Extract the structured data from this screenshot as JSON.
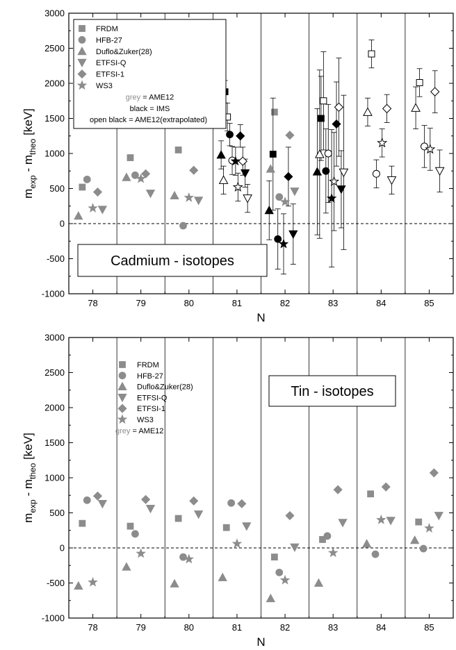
{
  "colors": {
    "grey": "#8c8c8c",
    "black": "#000000",
    "open": "#ffffff"
  },
  "chart_data": [
    {
      "type": "scatter",
      "panel": "cadmium",
      "title": "",
      "annotation": "Cadmium - isotopes",
      "xlabel": "N",
      "ylabel": {
        "base": "m",
        "sub1": "exp",
        "mid": " - m",
        "sub2": "theo",
        "tail": " [keV]"
      },
      "xlim": [
        77.5,
        85.5
      ],
      "ylim": [
        -1000,
        3000
      ],
      "xticks": [
        "78",
        "79",
        "80",
        "81",
        "82",
        "83",
        "84",
        "85"
      ],
      "yticks": [
        "-1000",
        "-500",
        "0",
        "500",
        "1000",
        "1500",
        "2000",
        "2500",
        "3000"
      ],
      "legend_position": "top-left",
      "legend": [
        "FRDM",
        "HFB-27",
        "Duflo&Zuker(28)",
        "ETFSI-Q",
        "ETFSI-1",
        "WS3"
      ],
      "legend_notes": [
        {
          "key": "grey",
          "text": " = AME12"
        },
        {
          "key": "",
          "text": "black = IMS"
        },
        {
          "key": "",
          "text": "open black  = AME12(extrapolated)"
        }
      ],
      "series": [
        {
          "name": "FRDM",
          "marker": "square",
          "points": [
            {
              "x": 78,
              "y": 520,
              "style": "grey"
            },
            {
              "x": 79,
              "y": 940,
              "style": "grey"
            },
            {
              "x": 80,
              "y": 1050,
              "style": "grey"
            },
            {
              "x": 81,
              "y": 1880,
              "err": 160,
              "style": "black"
            },
            {
              "x": 81,
              "y": 1520,
              "err": 200,
              "style": "open"
            },
            {
              "x": 82,
              "y": 1590,
              "style": "grey"
            },
            {
              "x": 82,
              "y": 990,
              "err": 800,
              "style": "black"
            },
            {
              "x": 83,
              "y": 1500,
              "err": 600,
              "style": "black"
            },
            {
              "x": 83,
              "y": 1750,
              "err": 700,
              "style": "open"
            },
            {
              "x": 84,
              "y": 2420,
              "err": 200,
              "style": "open"
            },
            {
              "x": 85,
              "y": 2010,
              "err": 200,
              "style": "open"
            }
          ]
        },
        {
          "name": "HFB-27",
          "marker": "circle",
          "points": [
            {
              "x": 78,
              "y": 630,
              "style": "grey"
            },
            {
              "x": 79,
              "y": 690,
              "style": "grey"
            },
            {
              "x": 80,
              "y": -30,
              "style": "grey"
            },
            {
              "x": 81,
              "y": 1270,
              "err": 160,
              "style": "black"
            },
            {
              "x": 81,
              "y": 900,
              "err": 200,
              "style": "open"
            },
            {
              "x": 82,
              "y": 380,
              "style": "grey"
            },
            {
              "x": 82,
              "y": -220,
              "err": 430,
              "style": "black"
            },
            {
              "x": 83,
              "y": 750,
              "err": 600,
              "style": "black"
            },
            {
              "x": 83,
              "y": 1000,
              "err": 700,
              "style": "open"
            },
            {
              "x": 84,
              "y": 710,
              "err": 200,
              "style": "open"
            },
            {
              "x": 85,
              "y": 1100,
              "err": 300,
              "style": "open"
            }
          ]
        },
        {
          "name": "Duflo&Zuker(28)",
          "marker": "triangle-up",
          "points": [
            {
              "x": 78,
              "y": 110,
              "style": "grey"
            },
            {
              "x": 79,
              "y": 660,
              "style": "grey"
            },
            {
              "x": 80,
              "y": 400,
              "style": "grey"
            },
            {
              "x": 81,
              "y": 980,
              "err": 200,
              "style": "black"
            },
            {
              "x": 81,
              "y": 620,
              "err": 200,
              "style": "open"
            },
            {
              "x": 82,
              "y": 780,
              "style": "grey"
            },
            {
              "x": 82,
              "y": 190,
              "err": 420,
              "style": "black"
            },
            {
              "x": 83,
              "y": 740,
              "err": 900,
              "style": "black"
            },
            {
              "x": 83,
              "y": 990,
              "err": 1200,
              "style": "open"
            },
            {
              "x": 84,
              "y": 1590,
              "err": 200,
              "style": "open"
            },
            {
              "x": 85,
              "y": 1650,
              "err": 300,
              "style": "open"
            }
          ]
        },
        {
          "name": "ETFSI-Q",
          "marker": "triangle-down",
          "points": [
            {
              "x": 78,
              "y": 200,
              "style": "grey"
            },
            {
              "x": 79,
              "y": 430,
              "style": "grey"
            },
            {
              "x": 80,
              "y": 330,
              "style": "grey"
            },
            {
              "x": 81,
              "y": 720,
              "err": 200,
              "style": "black"
            },
            {
              "x": 81,
              "y": 360,
              "err": 200,
              "style": "open"
            },
            {
              "x": 82,
              "y": 460,
              "style": "grey"
            },
            {
              "x": 82,
              "y": -150,
              "err": 430,
              "style": "black"
            },
            {
              "x": 83,
              "y": 490,
              "err": 550,
              "style": "black"
            },
            {
              "x": 83,
              "y": 730,
              "err": 1100,
              "style": "open"
            },
            {
              "x": 84,
              "y": 620,
              "err": 200,
              "style": "open"
            },
            {
              "x": 85,
              "y": 750,
              "err": 300,
              "style": "open"
            }
          ]
        },
        {
          "name": "ETFSI-1",
          "marker": "diamond",
          "points": [
            {
              "x": 78,
              "y": 450,
              "style": "grey"
            },
            {
              "x": 79,
              "y": 710,
              "style": "grey"
            },
            {
              "x": 80,
              "y": 760,
              "style": "grey"
            },
            {
              "x": 81,
              "y": 1250,
              "err": 160,
              "style": "black"
            },
            {
              "x": 81,
              "y": 890,
              "err": 200,
              "style": "open"
            },
            {
              "x": 82,
              "y": 1260,
              "style": "grey"
            },
            {
              "x": 82,
              "y": 670,
              "err": 420,
              "style": "black"
            },
            {
              "x": 83,
              "y": 1420,
              "err": 600,
              "style": "black"
            },
            {
              "x": 83,
              "y": 1660,
              "err": 700,
              "style": "open"
            },
            {
              "x": 84,
              "y": 1640,
              "err": 200,
              "style": "open"
            },
            {
              "x": 85,
              "y": 1880,
              "err": 300,
              "style": "open"
            }
          ]
        },
        {
          "name": "WS3",
          "marker": "star",
          "points": [
            {
              "x": 78,
              "y": 220,
              "style": "grey"
            },
            {
              "x": 79,
              "y": 640,
              "style": "grey"
            },
            {
              "x": 80,
              "y": 370,
              "style": "grey"
            },
            {
              "x": 81,
              "y": 890,
              "err": 200,
              "style": "black"
            },
            {
              "x": 81,
              "y": 520,
              "err": 200,
              "style": "open"
            },
            {
              "x": 82,
              "y": 310,
              "style": "grey"
            },
            {
              "x": 82,
              "y": -290,
              "err": 430,
              "style": "black"
            },
            {
              "x": 83,
              "y": 360,
              "err": 980,
              "style": "black"
            },
            {
              "x": 83,
              "y": 600,
              "err": 700,
              "style": "open"
            },
            {
              "x": 84,
              "y": 1150,
              "err": 200,
              "style": "open"
            },
            {
              "x": 85,
              "y": 1060,
              "err": 300,
              "style": "open"
            }
          ]
        }
      ]
    },
    {
      "type": "scatter",
      "panel": "tin",
      "title": "",
      "annotation": "Tin - isotopes",
      "xlabel": "N",
      "ylabel": {
        "base": "m",
        "sub1": "exp",
        "mid": " - m",
        "sub2": "theo",
        "tail": " [keV]"
      },
      "xlim": [
        77.5,
        85.5
      ],
      "ylim": [
        -1000,
        3000
      ],
      "xticks": [
        "78",
        "79",
        "80",
        "81",
        "82",
        "83",
        "84",
        "85"
      ],
      "yticks": [
        "-1000",
        "-500",
        "0",
        "500",
        "1000",
        "1500",
        "2000",
        "2500",
        "3000"
      ],
      "legend_position": "top-left",
      "legend": [
        "FRDM",
        "HFB-27",
        "Duflo&Zuker(28)",
        "ETFSI-Q",
        "ETFSI-1",
        "WS3"
      ],
      "legend_notes": [
        {
          "key": "grey",
          "text": " = AME12"
        }
      ],
      "series": [
        {
          "name": "FRDM",
          "marker": "square",
          "points": [
            {
              "x": 78,
              "y": 350,
              "style": "grey"
            },
            {
              "x": 79,
              "y": 310,
              "style": "grey"
            },
            {
              "x": 80,
              "y": 420,
              "style": "grey"
            },
            {
              "x": 81,
              "y": 290,
              "style": "grey"
            },
            {
              "x": 82,
              "y": -130,
              "style": "grey"
            },
            {
              "x": 83,
              "y": 120,
              "style": "grey"
            },
            {
              "x": 84,
              "y": 770,
              "style": "grey"
            },
            {
              "x": 85,
              "y": 370,
              "style": "grey"
            }
          ]
        },
        {
          "name": "HFB-27",
          "marker": "circle",
          "points": [
            {
              "x": 78,
              "y": 680,
              "style": "grey"
            },
            {
              "x": 79,
              "y": 200,
              "style": "grey"
            },
            {
              "x": 80,
              "y": -130,
              "style": "grey"
            },
            {
              "x": 81,
              "y": 640,
              "style": "grey"
            },
            {
              "x": 82,
              "y": -350,
              "style": "grey"
            },
            {
              "x": 83,
              "y": 170,
              "style": "grey"
            },
            {
              "x": 84,
              "y": -90,
              "style": "grey"
            },
            {
              "x": 85,
              "y": -10,
              "style": "grey"
            }
          ]
        },
        {
          "name": "Duflo&Zuker(28)",
          "marker": "triangle-up",
          "points": [
            {
              "x": 78,
              "y": -540,
              "style": "grey"
            },
            {
              "x": 79,
              "y": -270,
              "style": "grey"
            },
            {
              "x": 80,
              "y": -510,
              "style": "grey"
            },
            {
              "x": 81,
              "y": -420,
              "style": "grey"
            },
            {
              "x": 82,
              "y": -720,
              "style": "grey"
            },
            {
              "x": 83,
              "y": -500,
              "style": "grey"
            },
            {
              "x": 84,
              "y": 60,
              "style": "grey"
            },
            {
              "x": 85,
              "y": 110,
              "style": "grey"
            }
          ]
        },
        {
          "name": "ETFSI-Q",
          "marker": "triangle-down",
          "points": [
            {
              "x": 78,
              "y": 630,
              "style": "grey"
            },
            {
              "x": 79,
              "y": 560,
              "style": "grey"
            },
            {
              "x": 80,
              "y": 480,
              "style": "grey"
            },
            {
              "x": 81,
              "y": 310,
              "style": "grey"
            },
            {
              "x": 82,
              "y": 10,
              "style": "grey"
            },
            {
              "x": 83,
              "y": 360,
              "style": "grey"
            },
            {
              "x": 84,
              "y": 390,
              "style": "grey"
            },
            {
              "x": 85,
              "y": 460,
              "style": "grey"
            }
          ]
        },
        {
          "name": "ETFSI-1",
          "marker": "diamond",
          "points": [
            {
              "x": 78,
              "y": 740,
              "style": "grey"
            },
            {
              "x": 79,
              "y": 690,
              "style": "grey"
            },
            {
              "x": 80,
              "y": 670,
              "style": "grey"
            },
            {
              "x": 81,
              "y": 630,
              "style": "grey"
            },
            {
              "x": 82,
              "y": 460,
              "style": "grey"
            },
            {
              "x": 83,
              "y": 830,
              "style": "grey"
            },
            {
              "x": 84,
              "y": 870,
              "style": "grey"
            },
            {
              "x": 85,
              "y": 1070,
              "style": "grey"
            }
          ]
        },
        {
          "name": "WS3",
          "marker": "star",
          "points": [
            {
              "x": 78,
              "y": -490,
              "style": "grey"
            },
            {
              "x": 79,
              "y": -80,
              "style": "grey"
            },
            {
              "x": 80,
              "y": -160,
              "style": "grey"
            },
            {
              "x": 81,
              "y": 60,
              "style": "grey"
            },
            {
              "x": 82,
              "y": -460,
              "style": "grey"
            },
            {
              "x": 83,
              "y": -70,
              "style": "grey"
            },
            {
              "x": 84,
              "y": 400,
              "style": "grey"
            },
            {
              "x": 85,
              "y": 280,
              "style": "grey"
            }
          ]
        }
      ]
    }
  ]
}
